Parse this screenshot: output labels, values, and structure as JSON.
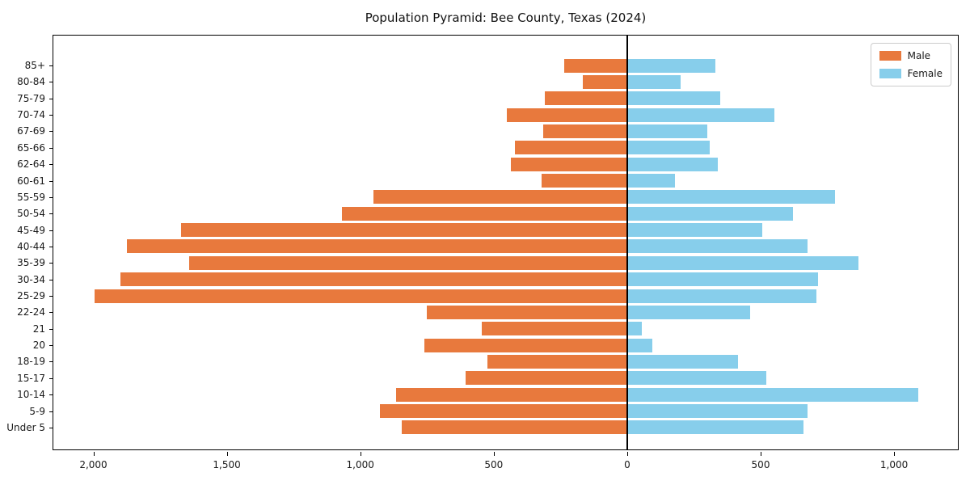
{
  "title": "Population Pyramid: Bee County, Texas (2024)",
  "legend": {
    "male_label": "Male",
    "female_label": "Female"
  },
  "colors": {
    "male": "#E8793D",
    "female": "#87CEEB",
    "axis": "#000000",
    "zero_line": "#000000",
    "legend_border": "#cccccc"
  },
  "chart_data": {
    "type": "bar",
    "subtype": "population-pyramid",
    "orientation": "horizontal",
    "title": "Population Pyramid: Bee County, Texas (2024)",
    "categories_top_to_bottom": [
      "85+",
      "80-84",
      "75-79",
      "70-74",
      "67-69",
      "65-66",
      "62-64",
      "60-61",
      "55-59",
      "50-54",
      "45-49",
      "40-44",
      "35-39",
      "30-34",
      "25-29",
      "22-24",
      "21",
      "20",
      "18-19",
      "15-17",
      "10-14",
      "5-9",
      "Under 5"
    ],
    "series": [
      {
        "name": "Male",
        "side": "left",
        "color": "#E8793D",
        "values": [
          235,
          165,
          310,
          450,
          315,
          420,
          435,
          320,
          950,
          1070,
          1670,
          1875,
          1640,
          1900,
          1995,
          750,
          545,
          760,
          525,
          605,
          865,
          925,
          845
        ]
      },
      {
        "name": "Female",
        "side": "right",
        "color": "#87CEEB",
        "values": [
          330,
          200,
          350,
          550,
          300,
          310,
          340,
          180,
          780,
          620,
          505,
          675,
          865,
          715,
          710,
          460,
          55,
          95,
          415,
          520,
          1090,
          675,
          660
        ]
      }
    ],
    "x_tick_values": [
      -2000,
      -1500,
      -1000,
      -500,
      0,
      500,
      1000
    ],
    "x_tick_labels": [
      "2,000",
      "1,500",
      "1,000",
      "500",
      "0",
      "500",
      "1,000"
    ],
    "xlim": [
      -2150,
      1245
    ],
    "grid": false,
    "zero_axis_line": true,
    "legend_position": "upper right",
    "legend_entries": [
      "Male",
      "Female"
    ]
  }
}
